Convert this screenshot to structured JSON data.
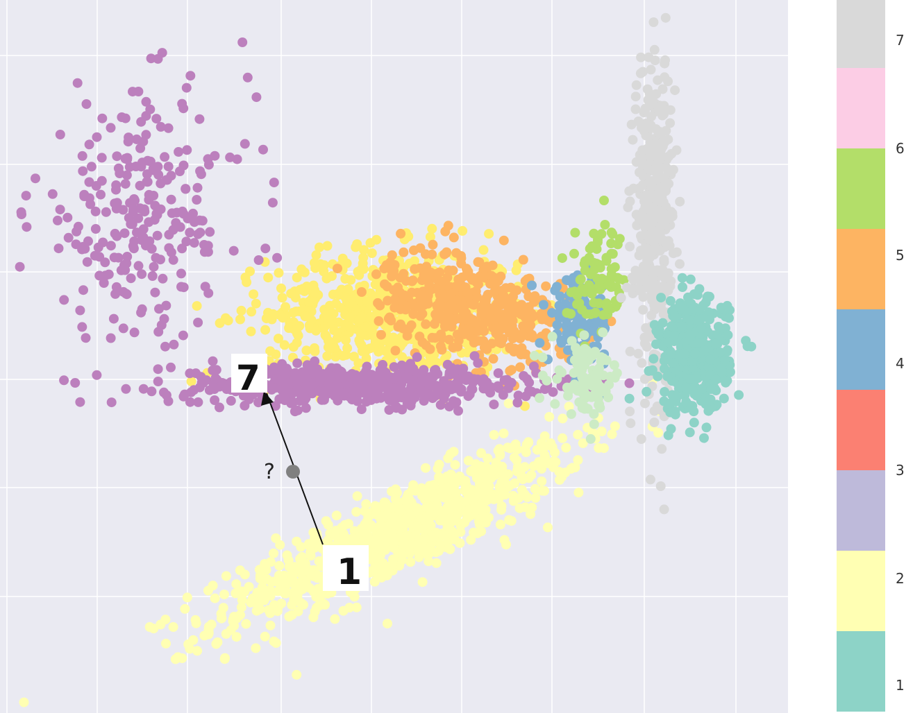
{
  "chart_data": {
    "type": "scatter",
    "title": "",
    "xlabel": "",
    "ylabel": "",
    "xlim": [
      0,
      1000
    ],
    "ylim": [
      0,
      1000
    ],
    "grid": true,
    "background": "#eaeaf2",
    "grid_color": "#ffffff",
    "colorbar": {
      "placement": "right",
      "ticks": [
        "1",
        "2",
        "3",
        "4",
        "5",
        "6",
        "7"
      ],
      "colors": [
        "#8dd3c7",
        "#ffffb3",
        "#bebada",
        "#fb8072",
        "#80b1d3",
        "#fdb462",
        "#b3de69",
        "#fccde5",
        "#d9d9d9",
        "#bc80bd"
      ]
    },
    "clusters": [
      {
        "color": "#ffffb3",
        "n": 900,
        "center": [
          500,
          250
        ],
        "spread": [
          260,
          55
        ],
        "angle": 28
      },
      {
        "color": "#ffed6f",
        "n": 700,
        "center": [
          500,
          560
        ],
        "spread": [
          160,
          90
        ],
        "angle": 0
      },
      {
        "color": "#fdb462",
        "n": 450,
        "center": [
          600,
          570
        ],
        "spread": [
          120,
          70
        ],
        "angle": -20
      },
      {
        "color": "#bc80bd",
        "n": 550,
        "center": [
          450,
          460
        ],
        "spread": [
          230,
          28
        ],
        "angle": 0
      },
      {
        "color": "#bc80bd",
        "n": 250,
        "center": [
          180,
          700
        ],
        "spread": [
          140,
          170
        ],
        "angle": 0
      },
      {
        "color": "#80b1d3",
        "n": 130,
        "center": [
          735,
          550
        ],
        "spread": [
          40,
          60
        ],
        "angle": 0
      },
      {
        "color": "#b3de69",
        "n": 90,
        "center": [
          760,
          600
        ],
        "spread": [
          35,
          80
        ],
        "angle": 0
      },
      {
        "color": "#ccebc5",
        "n": 90,
        "center": [
          745,
          470
        ],
        "spread": [
          45,
          50
        ],
        "angle": 0
      },
      {
        "color": "#d9d9d9",
        "n": 420,
        "center": [
          830,
          690
        ],
        "spread": [
          25,
          230
        ],
        "angle": 0
      },
      {
        "color": "#8dd3c7",
        "n": 420,
        "center": [
          880,
          500
        ],
        "spread": [
          45,
          80
        ],
        "angle": 0
      }
    ],
    "annotations": {
      "digit_seven": "7",
      "digit_one": "1",
      "query_label": "?"
    }
  }
}
